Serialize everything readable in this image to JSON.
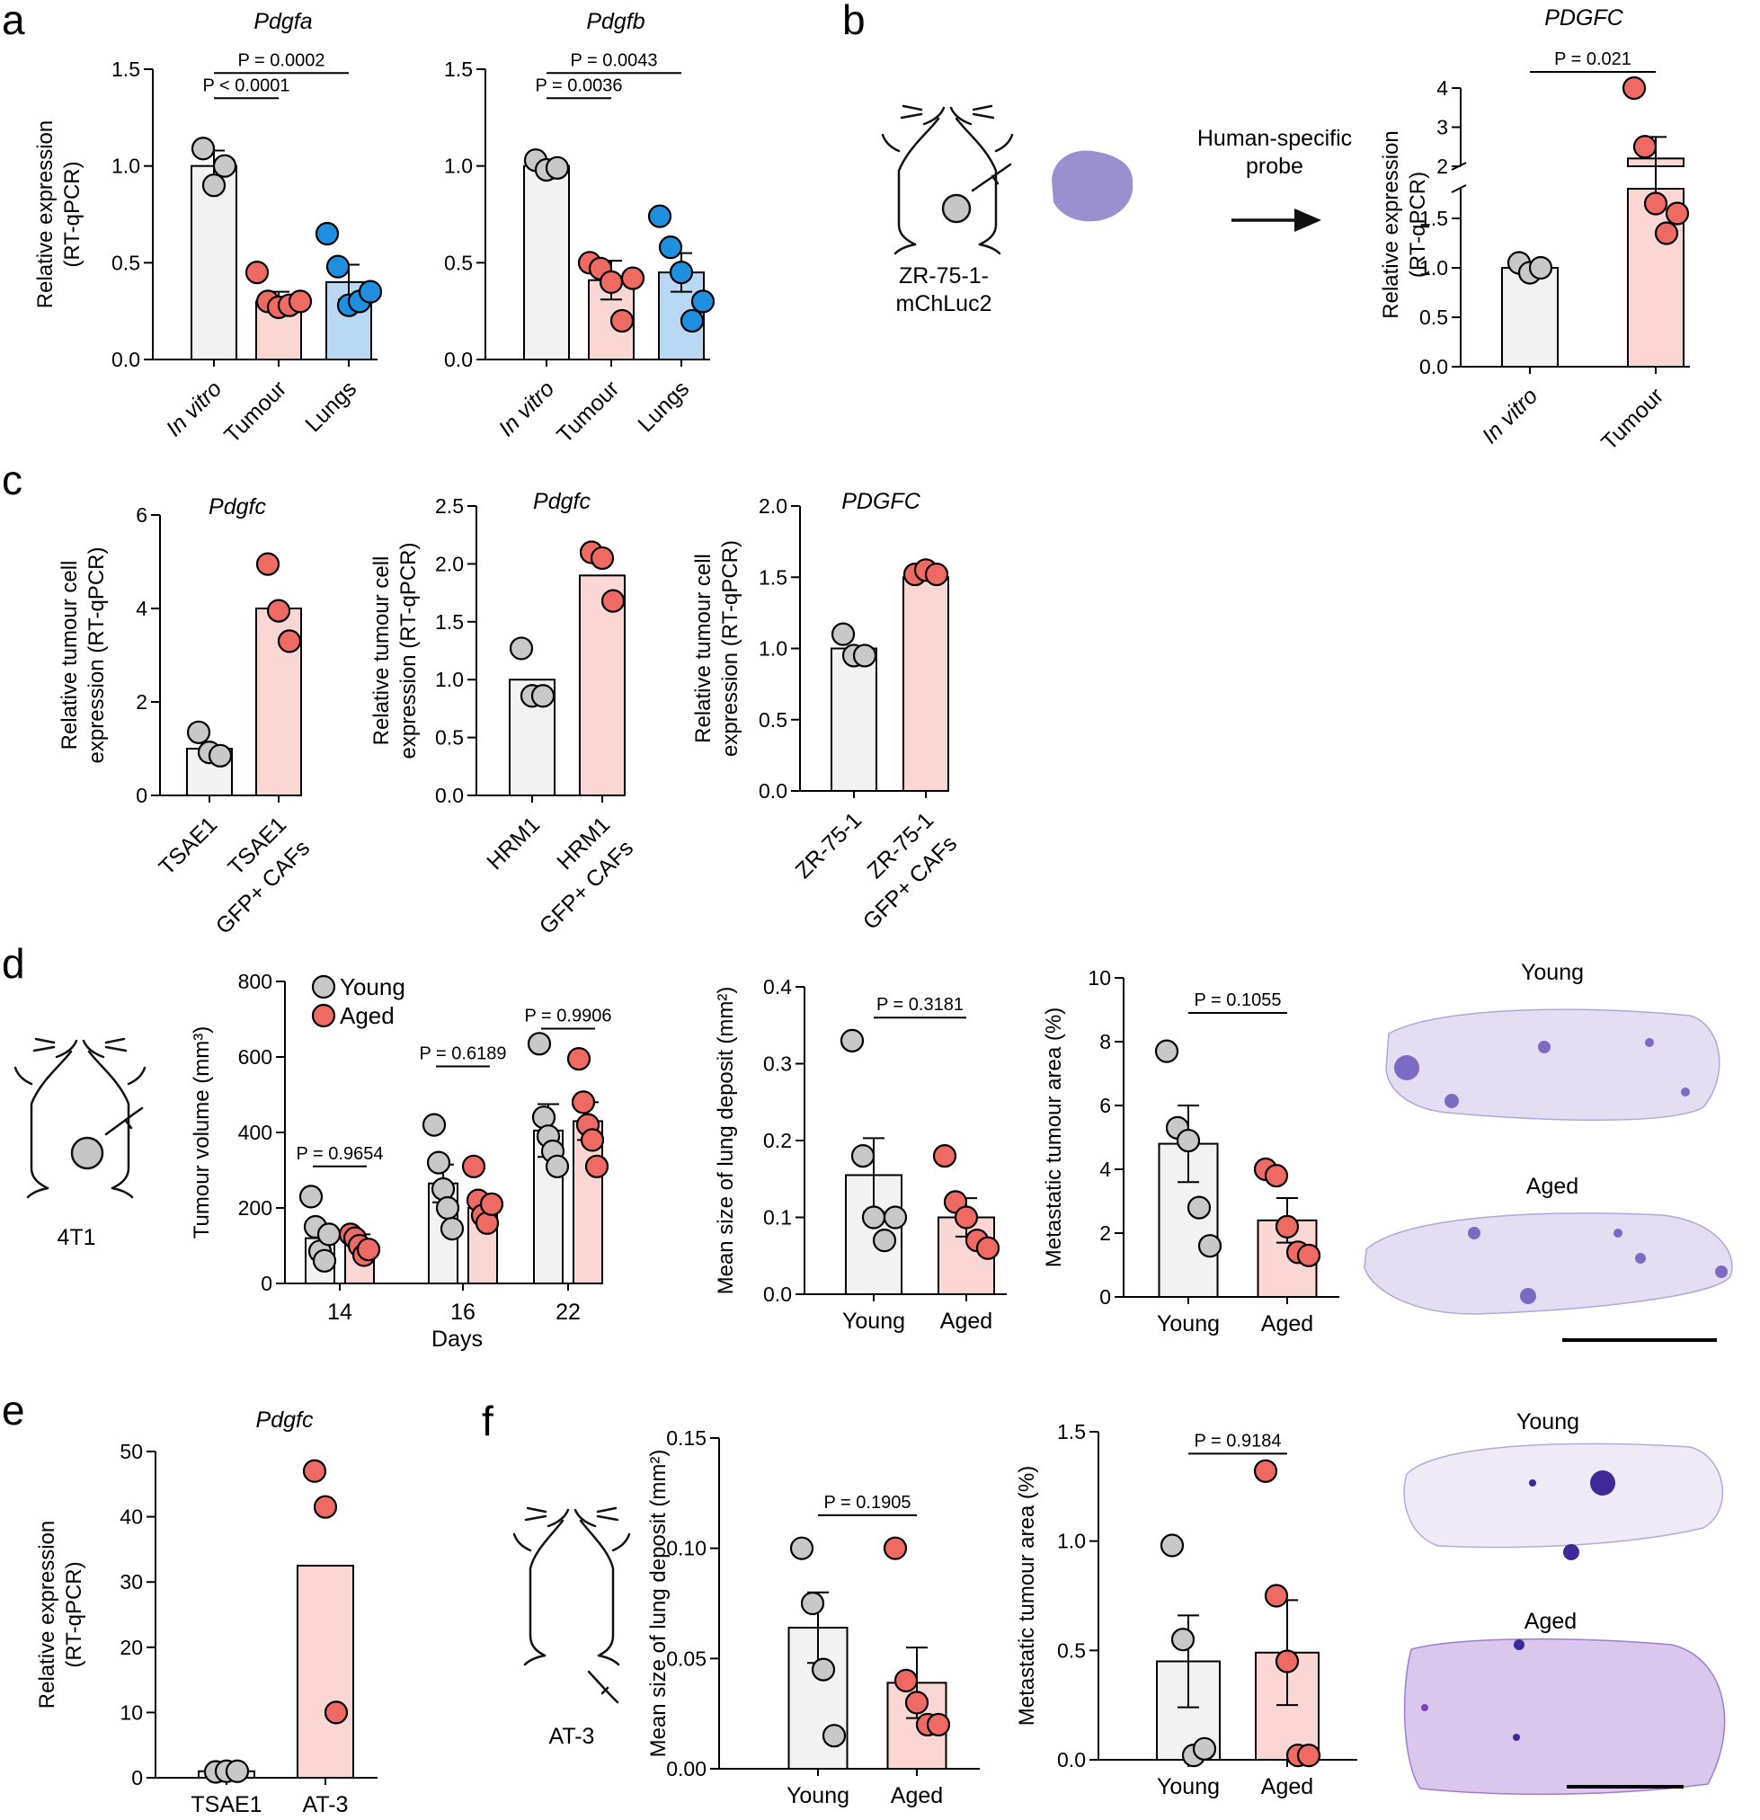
{
  "colors": {
    "grey_fill": "#f2f2f2",
    "grey_point": "#c8c8c8",
    "red_fill": "#fbd7d3",
    "red_point": "#ef6a63",
    "blue_fill": "#b9d8f3",
    "blue_point": "#1f8fe0",
    "histology_purple": "#b4a7d6",
    "lesion": "#7a6cc2"
  },
  "panels": [
    {
      "id": "a",
      "label": "a"
    },
    {
      "id": "b",
      "label": "b"
    },
    {
      "id": "c",
      "label": "c"
    },
    {
      "id": "d",
      "label": "d"
    },
    {
      "id": "e",
      "label": "e"
    },
    {
      "id": "f",
      "label": "f"
    }
  ],
  "annotations": {
    "b_model": "ZR-75-1-\nmChLuc2",
    "b_arrow_text": "Human-specific\nprobe",
    "d_model": "4T1",
    "f_model": "AT-3",
    "d_img_young": "Young",
    "d_img_aged": "Aged",
    "f_img_young": "Young",
    "f_img_aged": "Aged"
  },
  "chart_data": [
    {
      "id": "a1",
      "type": "bar",
      "title": "Pdgfa",
      "ylabel": "Relative expression\n(RT-qPCR)",
      "ylim": [
        0,
        1.5
      ],
      "yticks": [
        "0.0",
        "0.5",
        "1.0",
        "1.5"
      ],
      "categories": [
        "In vitro",
        "Tumour",
        "Lungs"
      ],
      "series": [
        {
          "name": "In vitro",
          "mean": 1.0,
          "sem": 0.08,
          "color": "grey",
          "points": [
            1.09,
            0.9,
            1.0
          ]
        },
        {
          "name": "Tumour",
          "mean": 0.3,
          "sem": 0.05,
          "color": "red",
          "points": [
            0.45,
            0.3,
            0.27,
            0.28,
            0.3
          ]
        },
        {
          "name": "Lungs",
          "mean": 0.4,
          "sem": 0.09,
          "color": "blue",
          "points": [
            0.65,
            0.48,
            0.28,
            0.3,
            0.35
          ]
        }
      ],
      "comparisons": [
        {
          "from": 0,
          "to": 1,
          "y": 1.35,
          "text": "P < 0.0001"
        },
        {
          "from": 0,
          "to": 2,
          "y": 1.48,
          "text": "P = 0.0002"
        }
      ]
    },
    {
      "id": "a2",
      "type": "bar",
      "title": "Pdgfb",
      "ylabel": "",
      "ylim": [
        0,
        1.5
      ],
      "yticks": [
        "0.0",
        "0.5",
        "1.0",
        "1.5"
      ],
      "categories": [
        "In vitro",
        "Tumour",
        "Lungs"
      ],
      "series": [
        {
          "name": "In vitro",
          "mean": 1.0,
          "sem": 0.02,
          "color": "grey",
          "points": [
            1.03,
            0.98,
            0.99
          ]
        },
        {
          "name": "Tumour",
          "mean": 0.41,
          "sem": 0.1,
          "color": "red",
          "points": [
            0.5,
            0.47,
            0.4,
            0.2,
            0.42
          ]
        },
        {
          "name": "Lungs",
          "mean": 0.45,
          "sem": 0.1,
          "color": "blue",
          "points": [
            0.74,
            0.58,
            0.45,
            0.2,
            0.3
          ]
        }
      ],
      "comparisons": [
        {
          "from": 0,
          "to": 1,
          "y": 1.35,
          "text": "P = 0.0036"
        },
        {
          "from": 0,
          "to": 2,
          "y": 1.48,
          "text": "P = 0.0043"
        }
      ]
    },
    {
      "id": "b",
      "type": "bar",
      "title": "PDGFC",
      "ylabel": "Relative expression\n(RT-qPCR)",
      "y_broken": true,
      "ylim_lower": [
        0,
        1.8
      ],
      "ylim_upper": [
        2,
        4
      ],
      "yticks_lower": [
        "0.0",
        "0.5",
        "1.0",
        "1.5"
      ],
      "yticks_upper": [
        "2",
        "3",
        "4"
      ],
      "categories": [
        "In vitro",
        "Tumour"
      ],
      "series": [
        {
          "name": "In vitro",
          "mean": 1.0,
          "sem": 0.05,
          "color": "grey",
          "points": [
            1.05,
            0.95,
            1.0
          ]
        },
        {
          "name": "Tumour",
          "mean": 2.2,
          "sem": 0.55,
          "color": "red",
          "points": [
            4.0,
            2.5,
            1.65,
            1.35,
            1.55
          ]
        }
      ],
      "comparisons": [
        {
          "from": 0,
          "to": 1,
          "y": 4.6,
          "text": "P = 0.021"
        }
      ]
    },
    {
      "id": "c1",
      "type": "bar",
      "title": "Pdgfc",
      "ylabel": "Relative tumour cell\nexpression (RT-qPCR)",
      "ylim": [
        0,
        6
      ],
      "yticks": [
        "0",
        "2",
        "4",
        "6"
      ],
      "categories": [
        "TSAE1",
        "TSAE1\nGFP+ CAFs"
      ],
      "series": [
        {
          "name": "TSAE1",
          "mean": 1.0,
          "color": "grey",
          "points": [
            1.35,
            0.92,
            0.85
          ]
        },
        {
          "name": "TSAE1 GFP+ CAFs",
          "mean": 4.0,
          "color": "red",
          "points": [
            4.95,
            3.95,
            3.3
          ]
        }
      ]
    },
    {
      "id": "c2",
      "type": "bar",
      "title": "Pdgfc",
      "ylabel": "Relative tumour cell\nexpression (RT-qPCR)",
      "ylim": [
        0,
        2.5
      ],
      "yticks": [
        "0.0",
        "0.5",
        "1.0",
        "1.5",
        "2.0",
        "2.5"
      ],
      "categories": [
        "HRM1",
        "HRM1\nGFP+ CAFs"
      ],
      "series": [
        {
          "name": "HRM1",
          "mean": 1.0,
          "color": "grey",
          "points": [
            1.27,
            0.86,
            0.86
          ]
        },
        {
          "name": "HRM1 GFP+ CAFs",
          "mean": 1.9,
          "color": "red",
          "points": [
            2.1,
            2.05,
            1.68
          ]
        }
      ]
    },
    {
      "id": "c3",
      "type": "bar",
      "title": "PDGFC",
      "ylabel": "Relative tumour cell\nexpression (RT-qPCR)",
      "ylim": [
        0,
        2.0
      ],
      "yticks": [
        "0.0",
        "0.5",
        "1.0",
        "1.5",
        "2.0"
      ],
      "categories": [
        "ZR-75-1",
        "ZR-75-1\nGFP+ CAFs"
      ],
      "series": [
        {
          "name": "ZR-75-1",
          "mean": 1.0,
          "color": "grey",
          "points": [
            1.1,
            0.95,
            0.95
          ]
        },
        {
          "name": "ZR-75-1 GFP+ CAFs",
          "mean": 1.5,
          "color": "red",
          "points": [
            1.52,
            1.55,
            1.52
          ]
        }
      ]
    },
    {
      "id": "d1",
      "type": "grouped_bar",
      "xlabel": "Days",
      "ylabel": "Tumour volume (mm³)",
      "ylim": [
        0,
        800
      ],
      "yticks": [
        "0",
        "200",
        "400",
        "600",
        "800"
      ],
      "categories": [
        "14",
        "16",
        "22"
      ],
      "legend": [
        "Young",
        "Aged"
      ],
      "series": [
        {
          "name": "Young",
          "color": "grey",
          "means": [
            120,
            265,
            405
          ],
          "sems": [
            30,
            50,
            70
          ],
          "points": [
            [
              230,
              150,
              85,
              60,
              130
            ],
            [
              420,
              320,
              250,
              200,
              145
            ],
            [
              635,
              440,
              390,
              350,
              310
            ]
          ]
        },
        {
          "name": "Aged",
          "color": "red",
          "means": [
            110,
            200,
            430
          ],
          "sems": [
            20,
            25,
            50
          ],
          "points": [
            [
              130,
              120,
              100,
              75,
              90
            ],
            [
              310,
              220,
              180,
              160,
              210
            ],
            [
              595,
              480,
              420,
              380,
              310
            ]
          ]
        }
      ],
      "comparisons": [
        {
          "group": 0,
          "y": 310,
          "text": "P = 0.9654"
        },
        {
          "group": 1,
          "y": 575,
          "text": "P = 0.6189"
        },
        {
          "group": 2,
          "y": 675,
          "text": "P = 0.9906"
        }
      ]
    },
    {
      "id": "d2",
      "type": "bar",
      "ylabel": "Mean size of lung deposit (mm²)",
      "ylim": [
        0,
        0.4
      ],
      "yticks": [
        "0.0",
        "0.1",
        "0.2",
        "0.3",
        "0.4"
      ],
      "categories": [
        "Young",
        "Aged"
      ],
      "series": [
        {
          "name": "Young",
          "mean": 0.155,
          "sem": 0.048,
          "color": "grey",
          "points": [
            0.33,
            0.18,
            0.1,
            0.07,
            0.1
          ]
        },
        {
          "name": "Aged",
          "mean": 0.1,
          "sem": 0.025,
          "color": "red",
          "points": [
            0.18,
            0.12,
            0.1,
            0.07,
            0.06
          ]
        }
      ],
      "comparisons": [
        {
          "from": 0,
          "to": 1,
          "y": 0.36,
          "text": "P = 0.3181"
        }
      ]
    },
    {
      "id": "d3",
      "type": "bar",
      "ylabel": "Metastatic tumour area (%)",
      "ylim": [
        0,
        10
      ],
      "yticks": [
        "0",
        "2",
        "4",
        "6",
        "8",
        "10"
      ],
      "categories": [
        "Young",
        "Aged"
      ],
      "series": [
        {
          "name": "Young",
          "mean": 4.8,
          "sem": 1.2,
          "color": "grey",
          "points": [
            7.7,
            5.3,
            4.9,
            2.8,
            1.6
          ]
        },
        {
          "name": "Aged",
          "mean": 2.4,
          "sem": 0.7,
          "color": "red",
          "points": [
            4.0,
            3.8,
            2.2,
            1.4,
            1.3
          ]
        }
      ],
      "comparisons": [
        {
          "from": 0,
          "to": 1,
          "y": 8.9,
          "text": "P = 0.1055"
        }
      ]
    },
    {
      "id": "e",
      "type": "bar",
      "title": "Pdgfc",
      "ylabel": "Relative expression\n(RT-qPCR)",
      "ylim": [
        0,
        50
      ],
      "yticks": [
        "0",
        "10",
        "20",
        "30",
        "40",
        "50"
      ],
      "categories": [
        "TSAE1",
        "AT-3"
      ],
      "series": [
        {
          "name": "TSAE1",
          "mean": 1.0,
          "color": "grey",
          "points": [
            0.9,
            1.0,
            1.0
          ]
        },
        {
          "name": "AT-3",
          "mean": 32.5,
          "color": "red",
          "points": [
            47.0,
            41.5,
            10.0
          ]
        }
      ]
    },
    {
      "id": "f1",
      "type": "bar",
      "ylabel": "Mean size of lung deposit (mm²)",
      "ylim": [
        0,
        0.15
      ],
      "yticks": [
        "0.00",
        "0.05",
        "0.10",
        "0.15"
      ],
      "categories": [
        "Young",
        "Aged"
      ],
      "series": [
        {
          "name": "Young",
          "mean": 0.064,
          "sem": 0.016,
          "color": "grey",
          "points": [
            0.1,
            0.075,
            0.045,
            0.015
          ]
        },
        {
          "name": "Aged",
          "mean": 0.039,
          "sem": 0.016,
          "color": "red",
          "points": [
            0.1,
            0.04,
            0.03,
            0.02,
            0.02
          ]
        }
      ],
      "comparisons": [
        {
          "from": 0,
          "to": 1,
          "y": 0.115,
          "text": "P = 0.1905"
        }
      ]
    },
    {
      "id": "f2",
      "type": "bar",
      "ylabel": "Metastatic tumour area (%)",
      "ylim": [
        0,
        1.5
      ],
      "yticks": [
        "0.0",
        "0.5",
        "1.0",
        "1.5"
      ],
      "categories": [
        "Young",
        "Aged"
      ],
      "series": [
        {
          "name": "Young",
          "mean": 0.45,
          "sem": 0.21,
          "color": "grey",
          "points": [
            0.98,
            0.55,
            0.02,
            0.05
          ]
        },
        {
          "name": "Aged",
          "mean": 0.49,
          "sem": 0.24,
          "color": "red",
          "points": [
            1.32,
            0.75,
            0.45,
            0.02,
            0.02
          ]
        }
      ],
      "comparisons": [
        {
          "from": 0,
          "to": 1,
          "y": 1.4,
          "text": "P = 0.9184"
        }
      ]
    }
  ]
}
